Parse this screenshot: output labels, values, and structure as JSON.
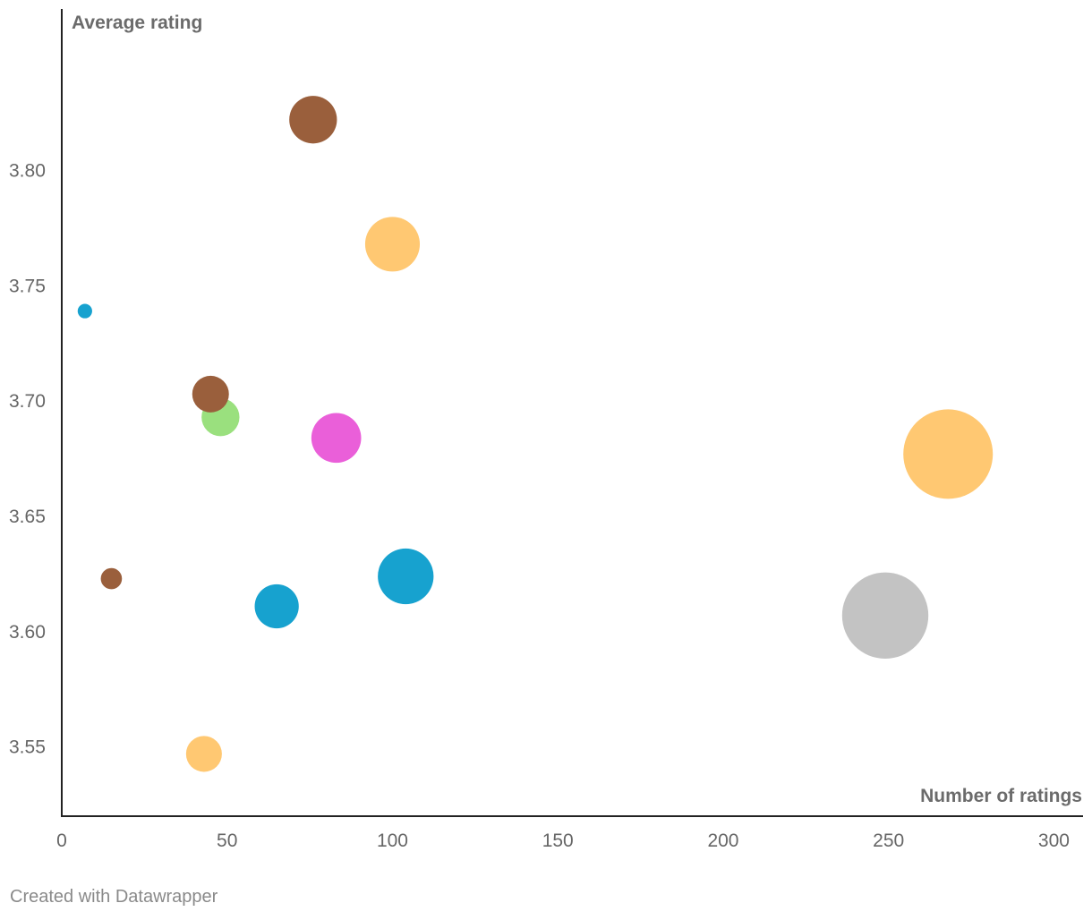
{
  "chart_data": {
    "type": "scatter",
    "xlabel": "Number of ratings",
    "ylabel": "Average rating",
    "xlim": [
      0,
      308
    ],
    "ylim": [
      3.52,
      3.87
    ],
    "x_ticks": [
      0,
      50,
      100,
      150,
      200,
      250,
      300
    ],
    "y_ticks": [
      3.55,
      3.6,
      3.65,
      3.7,
      3.75,
      3.8
    ],
    "y_tick_decimals": 2,
    "grid": false,
    "points": [
      {
        "x": 76,
        "y": 3.822,
        "size": 76,
        "color": "#9a5f3c"
      },
      {
        "x": 100,
        "y": 3.768,
        "size": 100,
        "color": "#ffc872"
      },
      {
        "x": 7,
        "y": 3.739,
        "size": 7,
        "color": "#17a2cf"
      },
      {
        "x": 48,
        "y": 3.693,
        "size": 48,
        "color": "#9ae07e"
      },
      {
        "x": 45,
        "y": 3.703,
        "size": 45,
        "color": "#9a5f3c"
      },
      {
        "x": 83,
        "y": 3.684,
        "size": 83,
        "color": "#ea5fd9"
      },
      {
        "x": 268,
        "y": 3.677,
        "size": 268,
        "color": "#ffc872"
      },
      {
        "x": 15,
        "y": 3.623,
        "size": 15,
        "color": "#9a5f3c"
      },
      {
        "x": 104,
        "y": 3.624,
        "size": 104,
        "color": "#17a2cf"
      },
      {
        "x": 65,
        "y": 3.611,
        "size": 65,
        "color": "#17a2cf"
      },
      {
        "x": 249,
        "y": 3.607,
        "size": 249,
        "color": "#c3c3c3"
      },
      {
        "x": 43,
        "y": 3.547,
        "size": 43,
        "color": "#ffc872"
      }
    ]
  },
  "footer": "Created with Datawrapper"
}
